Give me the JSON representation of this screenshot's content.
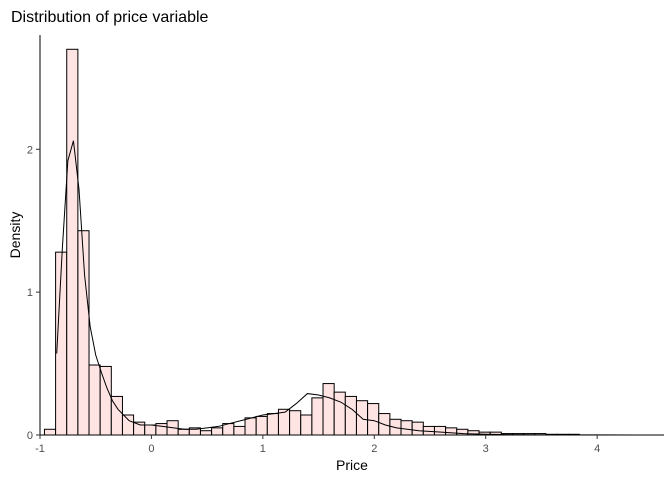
{
  "chart_data": {
    "type": "histogram",
    "title": "Distribution of price variable",
    "xlabel": "Price",
    "ylabel": "Density",
    "xlim": [
      -1.0,
      4.6
    ],
    "ylim": [
      0,
      2.8
    ],
    "x_ticks": [
      "-1",
      "0",
      "1",
      "2",
      "3",
      "4"
    ],
    "y_ticks": [
      "0",
      "1",
      "2"
    ],
    "bin_start": -0.96,
    "bin_width": 0.1,
    "histogram_density": [
      0.04,
      1.28,
      2.7,
      1.43,
      0.49,
      0.48,
      0.27,
      0.14,
      0.09,
      0.07,
      0.08,
      0.1,
      0.04,
      0.05,
      0.03,
      0.05,
      0.08,
      0.06,
      0.12,
      0.13,
      0.15,
      0.18,
      0.17,
      0.14,
      0.26,
      0.36,
      0.3,
      0.27,
      0.24,
      0.22,
      0.15,
      0.11,
      0.1,
      0.09,
      0.06,
      0.06,
      0.05,
      0.04,
      0.03,
      0.02,
      0.02,
      0.01,
      0.01,
      0.01,
      0.01,
      0.005,
      0.005,
      0.005
    ],
    "density_curve": {
      "x": [
        -0.85,
        -0.8,
        -0.75,
        -0.7,
        -0.65,
        -0.6,
        -0.55,
        -0.5,
        -0.45,
        -0.4,
        -0.35,
        -0.3,
        -0.25,
        -0.2,
        -0.1,
        0.0,
        0.1,
        0.2,
        0.3,
        0.4,
        0.5,
        0.6,
        0.7,
        0.8,
        0.9,
        1.0,
        1.1,
        1.2,
        1.3,
        1.4,
        1.5,
        1.6,
        1.7,
        1.8,
        1.9,
        2.0,
        2.1,
        2.2,
        2.4,
        2.6,
        2.8,
        3.0,
        3.2,
        3.4,
        3.6,
        4.0,
        4.55
      ],
      "y": [
        0.57,
        1.3,
        1.92,
        2.06,
        1.72,
        1.12,
        0.76,
        0.56,
        0.44,
        0.33,
        0.24,
        0.18,
        0.14,
        0.1,
        0.07,
        0.07,
        0.06,
        0.05,
        0.04,
        0.04,
        0.05,
        0.06,
        0.08,
        0.1,
        0.12,
        0.14,
        0.15,
        0.16,
        0.22,
        0.29,
        0.28,
        0.26,
        0.23,
        0.18,
        0.11,
        0.1,
        0.07,
        0.05,
        0.03,
        0.02,
        0.01,
        0.005,
        0.003,
        0.002,
        0.001,
        0.0005,
        0.0
      ]
    },
    "colors": {
      "fill": "#ffe4e4",
      "stroke": "#000000",
      "axis": "#000000",
      "tick_text": "#4d4d4d"
    }
  }
}
